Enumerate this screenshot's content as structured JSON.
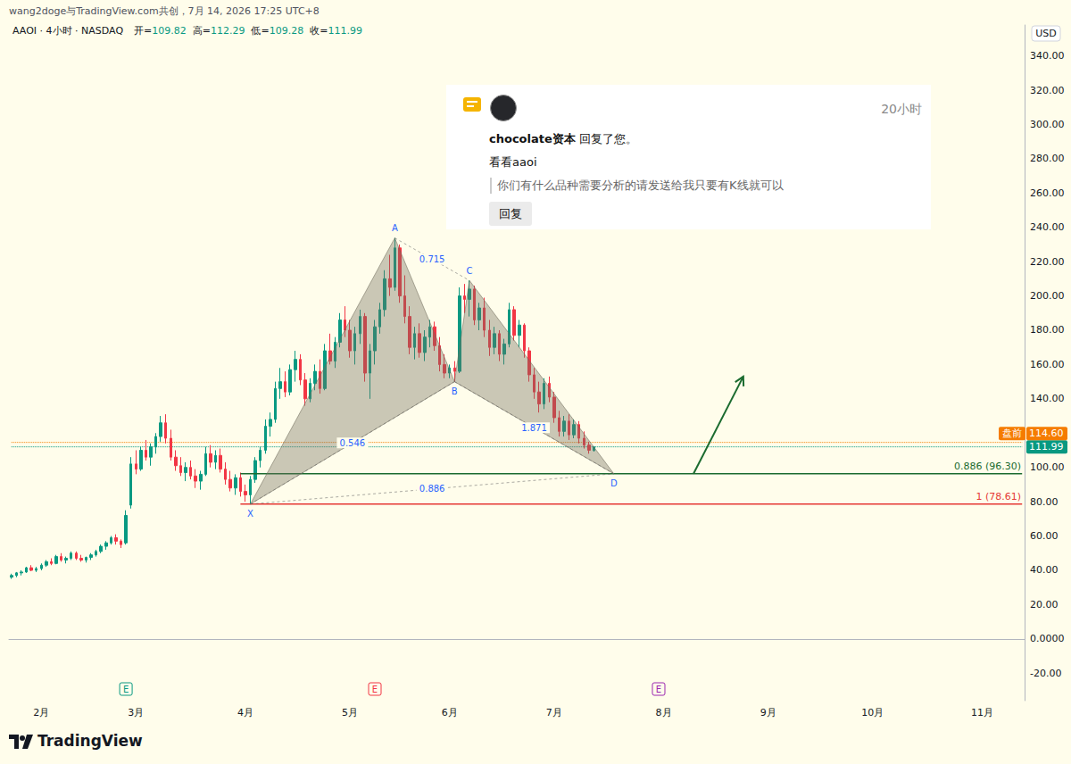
{
  "header": {
    "credit": "wang2doge与TradingView.com共创，7月 14, 2026 17:25 UTC+8",
    "symbol": "AAOI · 4小时 · NASDAQ",
    "ohlc": [
      {
        "label": "开=",
        "value": 109.82
      },
      {
        "label": "高=",
        "value": 112.29
      },
      {
        "label": "低=",
        "value": 109.28
      },
      {
        "label": "收=",
        "value": 111.99
      }
    ]
  },
  "comment": {
    "time": "20小时",
    "author": "chocolate资本",
    "action": "回复了您。",
    "message": "看看aaoi",
    "quote": "你们有什么品种需要分析的请发送给我只要有K线就可以",
    "button": "回复"
  },
  "footer": {
    "brand": "TradingView"
  },
  "chart_data": {
    "type": "candlestick",
    "currency": "USD",
    "grid": false,
    "categories": [
      null,
      null,
      null,
      null,
      null,
      null,
      "2月",
      null,
      null,
      null,
      null,
      null,
      null,
      null,
      null,
      null,
      null,
      null,
      null,
      null,
      null,
      null,
      null,
      null,
      null,
      "3月",
      null,
      null,
      null,
      null,
      null,
      null,
      null,
      null,
      null,
      null,
      null,
      null,
      null,
      null,
      null,
      null,
      null,
      null,
      null,
      null,
      null,
      "4月",
      null,
      null,
      null,
      null,
      null,
      null,
      null,
      null,
      null,
      null,
      null,
      null,
      null,
      null,
      null,
      null,
      null,
      null,
      null,
      null,
      "5月",
      null,
      null,
      null,
      null,
      null,
      null,
      null,
      null,
      null,
      null,
      null,
      null,
      null,
      null,
      null,
      null,
      null,
      null,
      null,
      "6月",
      null,
      null,
      null,
      null,
      null,
      null,
      null,
      null,
      null,
      null,
      null,
      null,
      null,
      null,
      null,
      null,
      null,
      null,
      null,
      null,
      "7月",
      null,
      null,
      null,
      null,
      null,
      null,
      null,
      null,
      null,
      null,
      null,
      null,
      null,
      null,
      null,
      null,
      null,
      null,
      null,
      null,
      null,
      "8月",
      null,
      null,
      null,
      null,
      null,
      null,
      null,
      null,
      null,
      null,
      null,
      null,
      null,
      null,
      null,
      null,
      null,
      null,
      null,
      null,
      "9月",
      null,
      null,
      null,
      null,
      null,
      null,
      null,
      null,
      null,
      null,
      null,
      null,
      null,
      null,
      null,
      null,
      null,
      null,
      null,
      null,
      "10月",
      null,
      null,
      null,
      null,
      null,
      null,
      null,
      null,
      null,
      null,
      null,
      null,
      null,
      null,
      null,
      null,
      null,
      null,
      null,
      null,
      null,
      "11月",
      null,
      null,
      null,
      null,
      null,
      null,
      null,
      null
    ],
    "series": [
      {
        "type": "candlestick",
        "values": [
          [
            36,
            38,
            35,
            37
          ],
          [
            37,
            39,
            36,
            38.5
          ],
          [
            38.5,
            40,
            37,
            39
          ],
          [
            39,
            42,
            38.5,
            41.5
          ],
          [
            41.5,
            43,
            39.5,
            40
          ],
          [
            40,
            42,
            39,
            41
          ],
          [
            41,
            44,
            40,
            43
          ],
          [
            43,
            46,
            42,
            45
          ],
          [
            45,
            47,
            43,
            44
          ],
          [
            44,
            49,
            43.5,
            48
          ],
          [
            48,
            50,
            45,
            46
          ],
          [
            46,
            48,
            44,
            47
          ],
          [
            47,
            51,
            46,
            50
          ],
          [
            50,
            51,
            46,
            47
          ],
          [
            47,
            49,
            45,
            46
          ],
          [
            46,
            48,
            44.5,
            47.5
          ],
          [
            47.5,
            50,
            46,
            49
          ],
          [
            49,
            52,
            48,
            51
          ],
          [
            51,
            55,
            50,
            54
          ],
          [
            54,
            57,
            52,
            56
          ],
          [
            56,
            60,
            55,
            59
          ],
          [
            59,
            61,
            55,
            57
          ],
          [
            57,
            58,
            53,
            55
          ],
          [
            56,
            75,
            55,
            72
          ],
          [
            78,
            106,
            76,
            102
          ],
          [
            102,
            110,
            96,
            99
          ],
          [
            99,
            112,
            98,
            110
          ],
          [
            110,
            116,
            104,
            106
          ],
          [
            106,
            114,
            101,
            112
          ],
          [
            112,
            120,
            108,
            118
          ],
          [
            118,
            130,
            115,
            126
          ],
          [
            126,
            131,
            114,
            117
          ],
          [
            117,
            122,
            104,
            106
          ],
          [
            106,
            110,
            98,
            101
          ],
          [
            101,
            106,
            95,
            97
          ],
          [
            97,
            103,
            92,
            100
          ],
          [
            100,
            104,
            93,
            95
          ],
          [
            95,
            99,
            88,
            92
          ],
          [
            92,
            98,
            87,
            96
          ],
          [
            96,
            112,
            95,
            108
          ],
          [
            108,
            113,
            100,
            103
          ],
          [
            103,
            110,
            99,
            107
          ],
          [
            107,
            111,
            97,
            99
          ],
          [
            99,
            103,
            90,
            93
          ],
          [
            93,
            98,
            86,
            88
          ],
          [
            88,
            96,
            84,
            94
          ],
          [
            94,
            97,
            83,
            86
          ],
          [
            86,
            90,
            80,
            84
          ],
          [
            84,
            95,
            78.61,
            93
          ],
          [
            93,
            106,
            91,
            104
          ],
          [
            104,
            112,
            100,
            110
          ],
          [
            110,
            128,
            108,
            124
          ],
          [
            124,
            132,
            118,
            128
          ],
          [
            128,
            150,
            126,
            146
          ],
          [
            146,
            158,
            140,
            150
          ],
          [
            150,
            156,
            141,
            144
          ],
          [
            144,
            160,
            142,
            157
          ],
          [
            157,
            168,
            150,
            163
          ],
          [
            163,
            166,
            148,
            151
          ],
          [
            151,
            155,
            136,
            140
          ],
          [
            140,
            152,
            138,
            149
          ],
          [
            149,
            160,
            145,
            156
          ],
          [
            156,
            163,
            143,
            146
          ],
          [
            146,
            172,
            145,
            168
          ],
          [
            168,
            178,
            160,
            162
          ],
          [
            162,
            176,
            158,
            173
          ],
          [
            173,
            190,
            170,
            186
          ],
          [
            186,
            194,
            176,
            180
          ],
          [
            180,
            186,
            164,
            168
          ],
          [
            168,
            182,
            160,
            178
          ],
          [
            178,
            192,
            172,
            188
          ],
          [
            188,
            190,
            150,
            155
          ],
          [
            155,
            172,
            140,
            168
          ],
          [
            168,
            186,
            160,
            182
          ],
          [
            182,
            196,
            178,
            192
          ],
          [
            192,
            215,
            188,
            210
          ],
          [
            210,
            224,
            200,
            205
          ],
          [
            205,
            233.8,
            203,
            228
          ],
          [
            228,
            230,
            196,
            200
          ],
          [
            200,
            212,
            184,
            188
          ],
          [
            188,
            194,
            166,
            170
          ],
          [
            170,
            182,
            163,
            178
          ],
          [
            178,
            184,
            164,
            167
          ],
          [
            167,
            180,
            162,
            176
          ],
          [
            176,
            186,
            170,
            182
          ],
          [
            182,
            185,
            168,
            171
          ],
          [
            171,
            176,
            156,
            160
          ],
          [
            160,
            166,
            152,
            155
          ],
          [
            155,
            160,
            152,
            158
          ],
          [
            158,
            162,
            150,
            156
          ],
          [
            156,
            205,
            155,
            200
          ],
          [
            200,
            207,
            190,
            198
          ],
          [
            198,
            209,
            188,
            204
          ],
          [
            204,
            206,
            183,
            186
          ],
          [
            186,
            196,
            180,
            193
          ],
          [
            193,
            199,
            176,
            180
          ],
          [
            180,
            186,
            165,
            170
          ],
          [
            170,
            182,
            166,
            178
          ],
          [
            178,
            180,
            162,
            166
          ],
          [
            166,
            175,
            160,
            172
          ],
          [
            172,
            196,
            170,
            192
          ],
          [
            192,
            194,
            174,
            177
          ],
          [
            177,
            186,
            170,
            183
          ],
          [
            183,
            184,
            164,
            168
          ],
          [
            168,
            170,
            150,
            154
          ],
          [
            154,
            158,
            140,
            144
          ],
          [
            144,
            150,
            132,
            137
          ],
          [
            137,
            152,
            134,
            149
          ],
          [
            149,
            153,
            138,
            141
          ],
          [
            141,
            144,
            126,
            129
          ],
          [
            129,
            133,
            118,
            121
          ],
          [
            121,
            130,
            118,
            127
          ],
          [
            127,
            131,
            116,
            119
          ],
          [
            119,
            128,
            117,
            125
          ],
          [
            125,
            127,
            114,
            117
          ],
          [
            117,
            121,
            111,
            113
          ],
          [
            113,
            115,
            108,
            110
          ],
          [
            109.82,
            112.29,
            109.28,
            111.99
          ],
          null,
          null,
          null,
          null,
          null,
          null,
          null,
          null,
          null,
          null,
          null,
          null,
          null,
          null,
          null,
          null,
          null,
          null,
          null,
          null,
          null,
          null,
          null,
          null,
          null,
          null,
          null,
          null,
          null,
          null,
          null,
          null,
          null,
          null,
          null,
          null,
          null,
          null,
          null,
          null,
          null,
          null,
          null,
          null,
          null,
          null,
          null,
          null,
          null,
          null,
          null,
          null,
          null,
          null,
          null,
          null,
          null,
          null,
          null,
          null,
          null,
          null,
          null,
          null,
          null,
          null,
          null,
          null,
          null,
          null,
          null,
          null,
          null,
          null,
          null,
          null,
          null,
          null,
          null,
          null,
          null,
          null,
          null,
          null,
          null,
          null
        ]
      }
    ],
    "ylim": [
      -36,
      358
    ],
    "yticks": [
      {
        "value": 340,
        "label": "340.00"
      },
      {
        "value": 320,
        "label": "320.00"
      },
      {
        "value": 300,
        "label": "300.00"
      },
      {
        "value": 280,
        "label": "280.00"
      },
      {
        "value": 260,
        "label": "260.00"
      },
      {
        "value": 240,
        "label": "240.00"
      },
      {
        "value": 220,
        "label": "220.00"
      },
      {
        "value": 200,
        "label": "200.00"
      },
      {
        "value": 180,
        "label": "180.00"
      },
      {
        "value": 160,
        "label": "160.00"
      },
      {
        "value": 140,
        "label": "140.00"
      },
      {
        "value": 100,
        "label": "100.00"
      },
      {
        "value": 80,
        "label": "80.00"
      },
      {
        "value": 60,
        "label": "60.00"
      },
      {
        "value": 40,
        "label": "40.00"
      },
      {
        "value": 20,
        "label": "20.00"
      },
      {
        "value": 0,
        "label": "0.0000"
      },
      {
        "value": -20,
        "label": "-20.00"
      }
    ],
    "price_tags": [
      {
        "name": "盘前",
        "value": 114.6,
        "label": "114.60",
        "color": "#f57c00"
      },
      {
        "value": 111.99,
        "label": "111.99",
        "color": "#089981"
      }
    ],
    "levels": [
      {
        "value": 96.3,
        "label": "0.886 (96.30)",
        "color": "#1b6b2f",
        "start": 46
      },
      {
        "value": 78.61,
        "label": "1 (78.61)",
        "color": "#e53935",
        "start": 46
      }
    ],
    "pattern": {
      "points": [
        {
          "label": "X",
          "x": 48,
          "value": 78.61
        },
        {
          "label": "A",
          "x": 77,
          "value": 233.8
        },
        {
          "label": "B",
          "x": 89,
          "value": 150
        },
        {
          "label": "C",
          "x": 92,
          "value": 209
        },
        {
          "label": "D",
          "x": 121,
          "value": 96.3
        }
      ],
      "ratios": [
        {
          "label": "0.546",
          "from": "X",
          "to": "B"
        },
        {
          "label": "0.715",
          "from": "A",
          "to": "C"
        },
        {
          "label": "1.871",
          "from": "B",
          "to": "D"
        },
        {
          "label": "0.886",
          "from": "X",
          "to": "D"
        }
      ]
    },
    "arrow": {
      "from": {
        "x": 137,
        "value": 96.3
      },
      "to": {
        "x": 147,
        "value": 153
      },
      "color": "#1b6b2f"
    },
    "events": [
      {
        "label": "E",
        "x": 23,
        "color": "#089981"
      },
      {
        "label": "E",
        "x": 73,
        "color": "#f23645"
      },
      {
        "label": "E",
        "x": 130,
        "color": "#9c27b0"
      }
    ]
  }
}
